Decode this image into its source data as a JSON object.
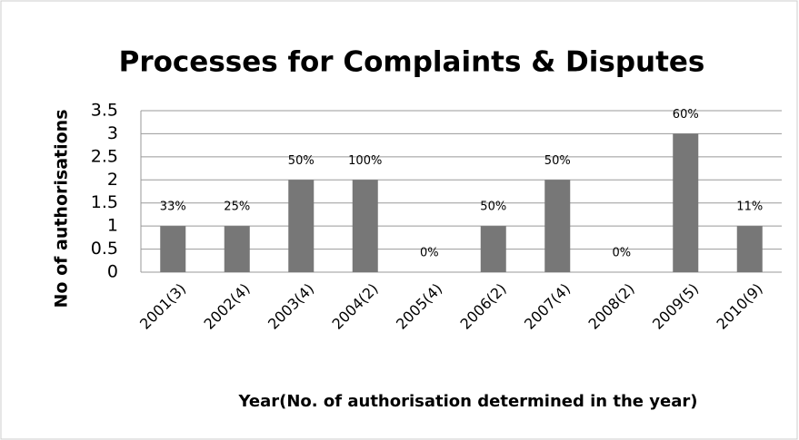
{
  "chart_data": {
    "type": "bar",
    "title": "Processes for Complaints & Disputes",
    "x_label": "Year(No. of authorisation determined in the year)",
    "y_label": "No of authorisations",
    "categories": [
      "2001(3)",
      "2002(4)",
      "2003(4)",
      "2004(2)",
      "2005(4)",
      "2006(2)",
      "2007(4)",
      "2008(2)",
      "2009(5)",
      "2010(9)"
    ],
    "values": [
      1,
      1,
      2,
      2,
      0,
      1,
      2,
      0,
      3,
      1
    ],
    "percent_labels": [
      "33%",
      "25%",
      "50%",
      "100%",
      "0%",
      "50%",
      "50%",
      "0%",
      "60%",
      "11%"
    ],
    "color": "#777777",
    "ylim": [
      0,
      3.5
    ],
    "yticks": [
      0,
      0.5,
      1,
      1.5,
      2,
      2.5,
      3,
      3.5
    ],
    "grid": true
  }
}
